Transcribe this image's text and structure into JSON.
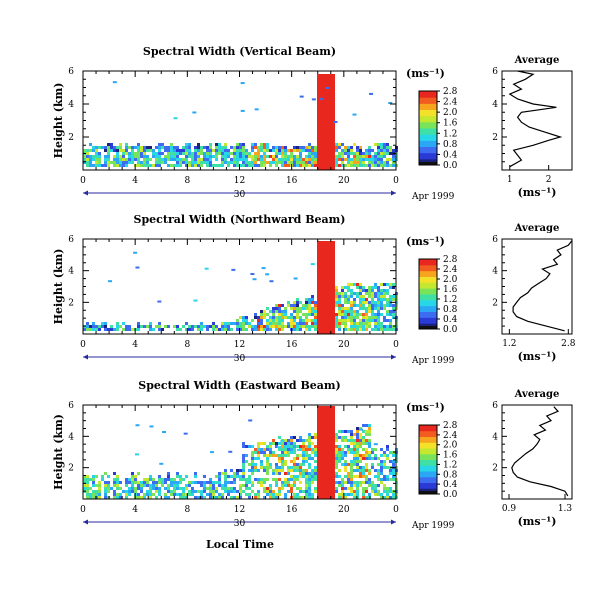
{
  "panels_common": {
    "x_ticks": [
      "0",
      "4",
      "8",
      "12",
      "16",
      "20",
      "0"
    ],
    "day_label": "30",
    "date_label": "Apr 1999",
    "ylabel": "Height (km)",
    "unit_label": "(ms⁻¹)",
    "avg_title": "Average",
    "avg_xlabel": "(ms⁻¹)"
  },
  "figure_xlabel": "Local Time",
  "colormap": [
    "#1a237e",
    "#2b3bd6",
    "#3d6cf0",
    "#2aa7f5",
    "#27d7e8",
    "#3ee0a6",
    "#79e35a",
    "#c4e830",
    "#f3e12a",
    "#f7a51f",
    "#f25c20",
    "#e8281e"
  ],
  "chart_data": [
    {
      "type": "heatmap",
      "title": "Spectral Width (Vertical Beam)",
      "xlim": [
        0,
        24
      ],
      "ylim": [
        0,
        6
      ],
      "y_ticks": [
        "2",
        "4",
        "6"
      ],
      "colorbar_ticks": [
        "0.0",
        "0.4",
        "0.8",
        "1.2",
        "1.6",
        "2.0",
        "2.4",
        "2.8"
      ],
      "colorbar_range": [
        0,
        2.8
      ],
      "average": {
        "x_ticks": [
          "1",
          "2"
        ],
        "xlim": [
          0.8,
          2.6
        ],
        "profile": [
          [
            0.2,
            1.0
          ],
          [
            0.6,
            1.3
          ],
          [
            0.9,
            1.2
          ],
          [
            1.2,
            1.1
          ],
          [
            1.5,
            1.6
          ],
          [
            1.8,
            2.0
          ],
          [
            2.0,
            2.3
          ],
          [
            2.3,
            1.9
          ],
          [
            2.6,
            1.5
          ],
          [
            2.9,
            1.3
          ],
          [
            3.2,
            1.2
          ],
          [
            3.5,
            1.3
          ],
          [
            3.8,
            2.2
          ],
          [
            4.0,
            1.6
          ],
          [
            4.3,
            1.2
          ],
          [
            4.6,
            1.0
          ],
          [
            4.9,
            1.3
          ],
          [
            5.2,
            1.1
          ],
          [
            5.5,
            1.4
          ],
          [
            5.8,
            1.6
          ],
          [
            6.0,
            1.2
          ]
        ]
      }
    },
    {
      "type": "heatmap",
      "title": "Spectral Width (Northward Beam)",
      "xlim": [
        0,
        24
      ],
      "ylim": [
        0,
        6
      ],
      "y_ticks": [
        "2",
        "4",
        "6"
      ],
      "colorbar_ticks": [
        "0.0",
        "0.4",
        "0.8",
        "1.2",
        "1.6",
        "2.0",
        "2.4",
        "2.8"
      ],
      "colorbar_range": [
        0,
        2.8
      ],
      "average": {
        "x_ticks": [
          "1.2",
          "2.8"
        ],
        "xlim": [
          1.0,
          2.9
        ],
        "profile": [
          [
            0.2,
            2.7
          ],
          [
            0.5,
            2.2
          ],
          [
            0.8,
            1.7
          ],
          [
            1.1,
            1.4
          ],
          [
            1.4,
            1.3
          ],
          [
            1.7,
            1.3
          ],
          [
            2.0,
            1.4
          ],
          [
            2.3,
            1.5
          ],
          [
            2.6,
            1.7
          ],
          [
            2.9,
            1.8
          ],
          [
            3.2,
            2.0
          ],
          [
            3.5,
            2.2
          ],
          [
            3.8,
            2.3
          ],
          [
            4.1,
            2.1
          ],
          [
            4.4,
            2.5
          ],
          [
            4.7,
            2.4
          ],
          [
            5.0,
            2.6
          ],
          [
            5.3,
            2.5
          ],
          [
            5.6,
            2.8
          ],
          [
            5.9,
            2.9
          ]
        ]
      }
    },
    {
      "type": "heatmap",
      "title": "Spectral Width (Eastward Beam)",
      "xlim": [
        0,
        24
      ],
      "ylim": [
        0,
        6
      ],
      "y_ticks": [
        "2",
        "4",
        "6"
      ],
      "colorbar_ticks": [
        "0.0",
        "0.4",
        "0.8",
        "1.2",
        "1.6",
        "2.0",
        "2.4",
        "2.8"
      ],
      "colorbar_range": [
        0,
        2.8
      ],
      "average": {
        "x_ticks": [
          "0.9",
          "1.3"
        ],
        "xlim": [
          0.85,
          1.35
        ],
        "profile": [
          [
            0.2,
            1.32
          ],
          [
            0.5,
            1.3
          ],
          [
            0.8,
            1.2
          ],
          [
            1.1,
            1.05
          ],
          [
            1.4,
            0.96
          ],
          [
            1.7,
            0.93
          ],
          [
            2.0,
            0.92
          ],
          [
            2.3,
            0.94
          ],
          [
            2.6,
            0.98
          ],
          [
            2.9,
            1.02
          ],
          [
            3.2,
            1.07
          ],
          [
            3.5,
            1.1
          ],
          [
            3.8,
            1.12
          ],
          [
            4.1,
            1.08
          ],
          [
            4.4,
            1.16
          ],
          [
            4.7,
            1.12
          ],
          [
            5.0,
            1.2
          ],
          [
            5.3,
            1.17
          ],
          [
            5.6,
            1.25
          ],
          [
            5.9,
            1.22
          ]
        ]
      }
    }
  ]
}
